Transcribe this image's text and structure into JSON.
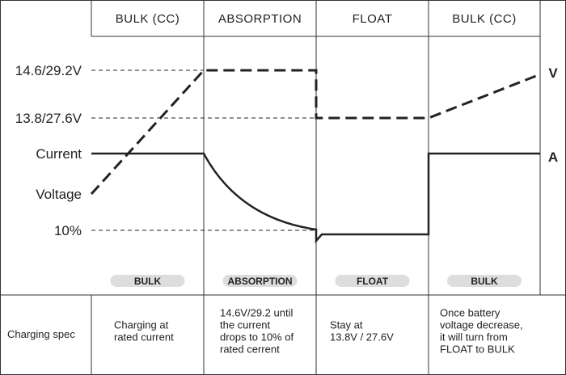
{
  "header": {
    "phases": [
      "BULK (CC)",
      "ABSORPTION",
      "FLOAT",
      "BULK (CC)"
    ]
  },
  "levels": {
    "left": [
      "14.6/29.2V",
      "13.8/27.6V",
      "Current",
      "Voltage",
      "10%"
    ],
    "right": [
      "V",
      "A"
    ]
  },
  "stage_tags": [
    "BULK",
    "ABSORPTION",
    "FLOAT",
    "BULK"
  ],
  "spec": {
    "label": "Charging spec",
    "cells": [
      [
        "Charging at",
        "rated current"
      ],
      [
        "14.6V/29.2 until",
        "the current",
        "drops to 10% of",
        "rated cerrent"
      ],
      [
        "Stay at",
        "13.8V / 27.6V"
      ],
      [
        "Once battery",
        "voltage decrease,",
        "it will turn from",
        "FLOAT to BULK"
      ]
    ]
  }
}
